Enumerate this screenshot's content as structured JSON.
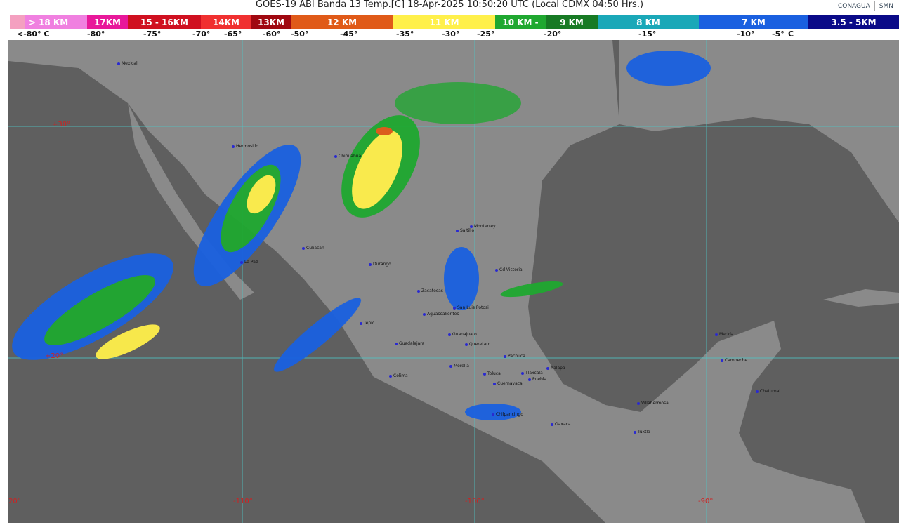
{
  "header": {
    "title": "GOES-19 ABI Banda 13 Temp.[C] 18-Apr-2025 10:50:20 UTC (Local CDMX  04:50 Hrs.)",
    "logos": [
      "CONAGUA",
      "SMN"
    ]
  },
  "legend": {
    "bands": [
      {
        "label": "> 18 KM",
        "color": "#f080e0"
      },
      {
        "label": "17KM",
        "color": "#e8189a"
      },
      {
        "label": "15 - 16KM",
        "color": "#d01020"
      },
      {
        "label": "14KM",
        "color": "#f03030"
      },
      {
        "label": "13KM",
        "color": "#a00810"
      },
      {
        "label": "12 KM",
        "color": "#e05a18"
      },
      {
        "label": "11 KM",
        "color": "#fff04a"
      },
      {
        "label": "10 KM - ",
        "color": "#1fa830"
      },
      {
        "label": "9 KM",
        "color": "#177a24"
      },
      {
        "label": "8 KM",
        "color": "#1aa8b8"
      },
      {
        "label": "7 KM",
        "color": "#1a60e0"
      },
      {
        "label": "3.5 - 5KM",
        "color": "#0a0a88"
      }
    ],
    "temps": [
      "<-80° C",
      "-80°",
      "-75°",
      "-70°",
      "-65°",
      "-60°",
      "-50°",
      "-45°",
      "-35°",
      "-30°",
      "-25°",
      "-20°",
      "-15°",
      "-10°",
      "-5°",
      "C"
    ]
  },
  "map": {
    "grid_labels": {
      "lat30": "+30°",
      "lat20": "+20°",
      "lon120": "-120°",
      "lon110": "-110°",
      "lon100": "-100°",
      "lon90": "-90°"
    },
    "cities": [
      "Mexicali",
      "Hermosillo",
      "Chihuahua",
      "La Paz",
      "Culiacan",
      "Durango",
      "Saltillo",
      "Monterrey",
      "Cd Victoria",
      "Zacatecas",
      "San Luis Potosi",
      "Aguascalientes",
      "Guanajuato",
      "Tepic",
      "Guadalajara",
      "Queretaro",
      "Pachuca",
      "Morelia",
      "Colima",
      "Toluca",
      "Tlaxcala",
      "Puebla",
      "Cuernavaca",
      "Xalapa",
      "Chilpancingo",
      "Oaxaca",
      "Villahermosa",
      "Tuxtla",
      "Campeche",
      "Merida",
      "Chetumal"
    ]
  }
}
